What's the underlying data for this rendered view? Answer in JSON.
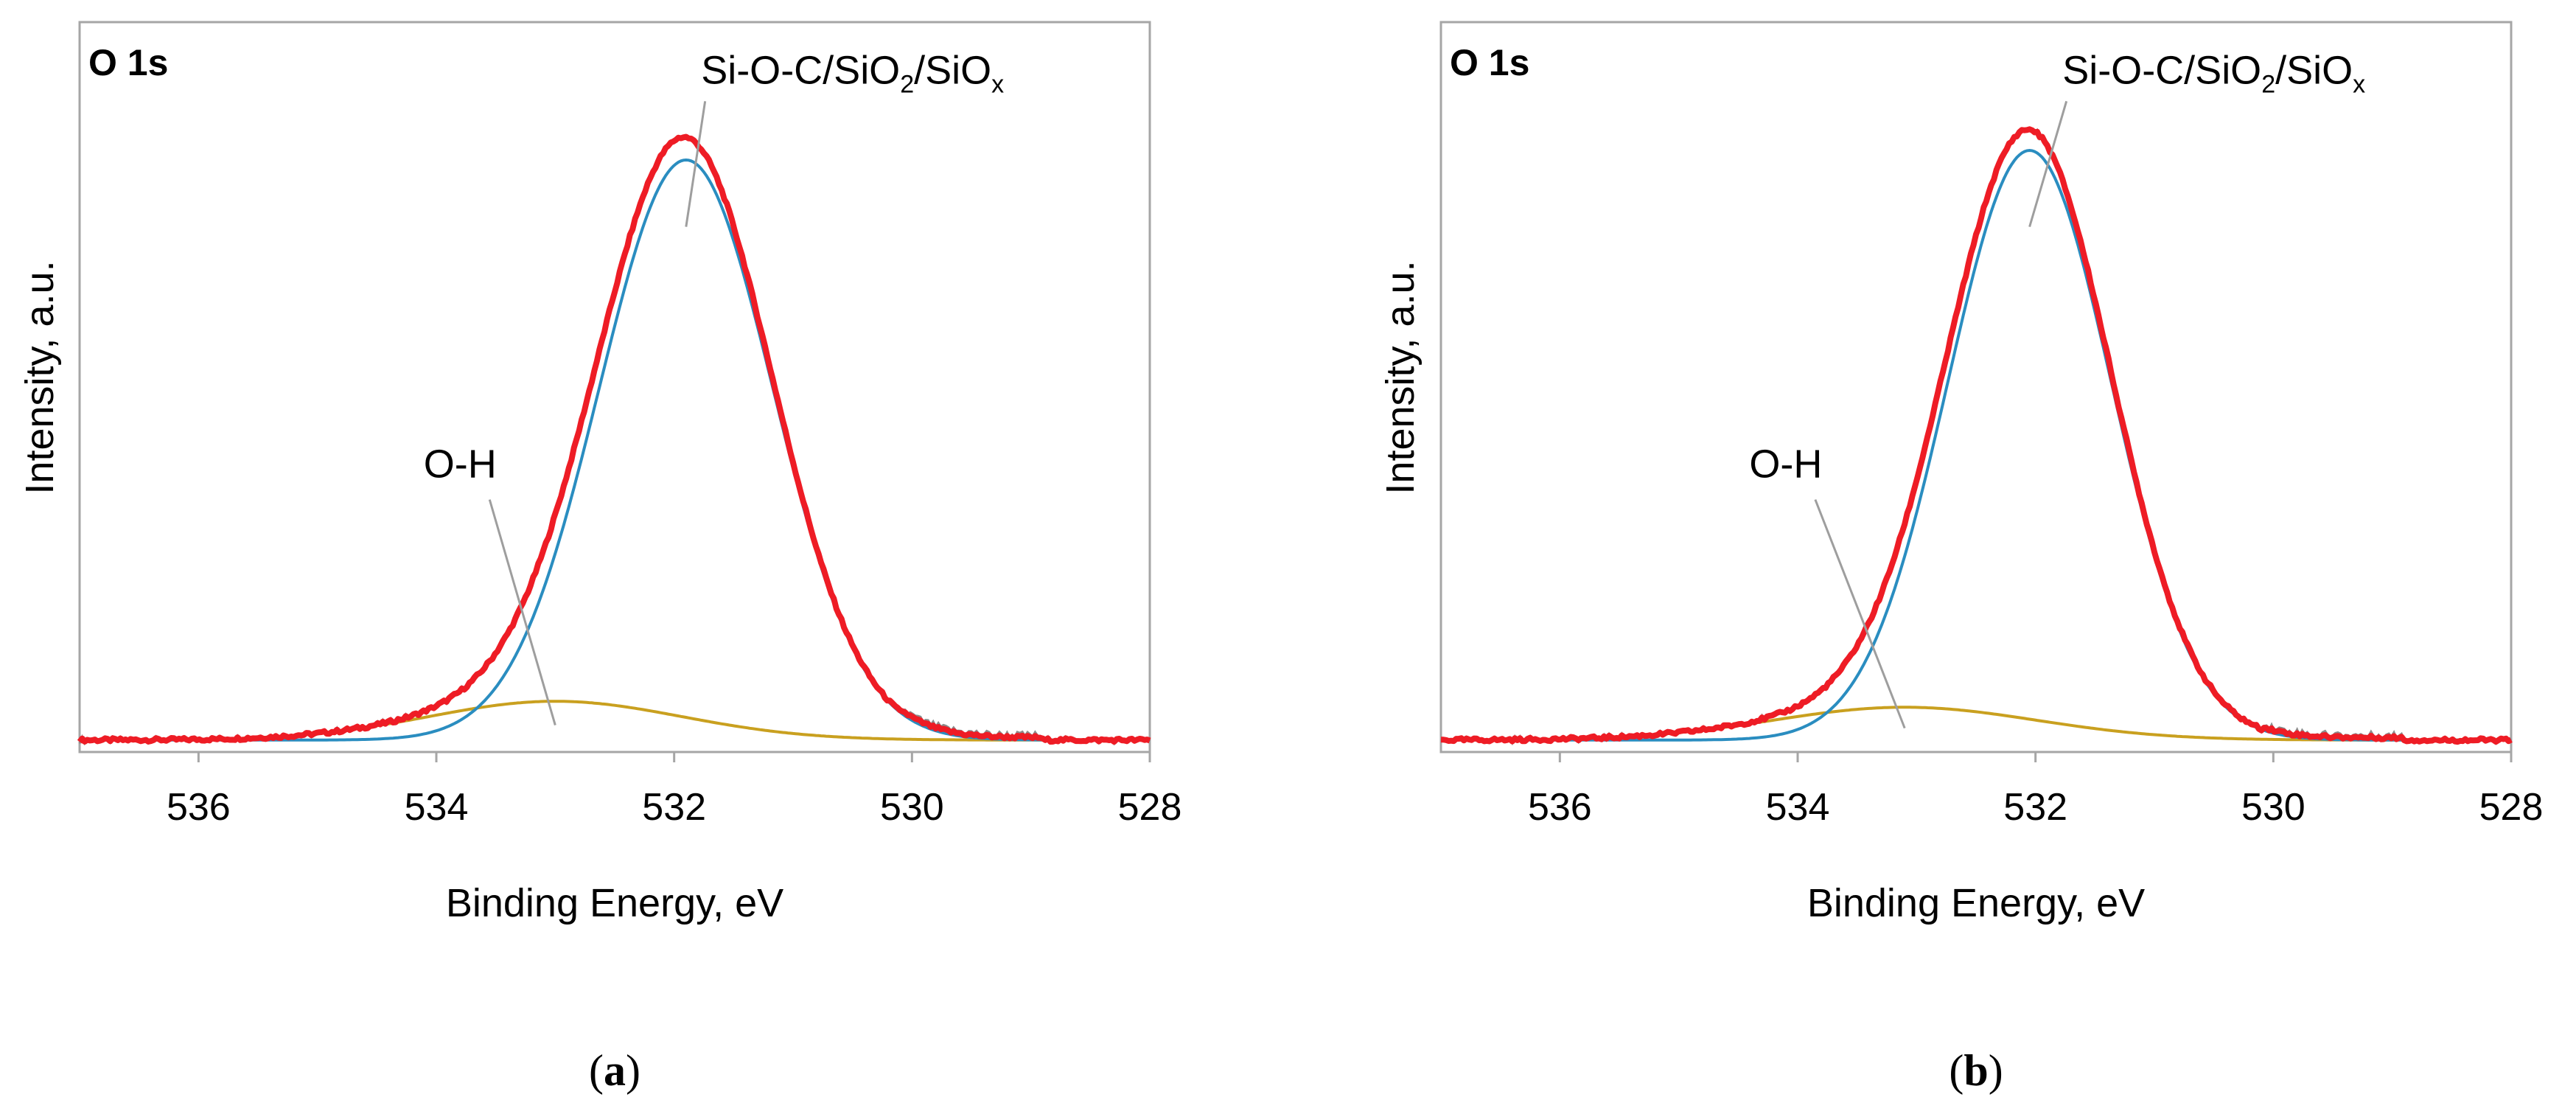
{
  "chart_data": [
    {
      "type": "line",
      "panel_id": "a",
      "caption": "(a)",
      "caption_letter": "a",
      "panel_title": "O 1s",
      "xlabel": "Binding Energy, eV",
      "ylabel": "Intensity, a.u.",
      "xlim": [
        537,
        528
      ],
      "x_reversed": true,
      "xticks": [
        536,
        534,
        532,
        530,
        528
      ],
      "ylim": [
        0,
        1.05
      ],
      "yticks_visible": false,
      "grid": false,
      "colors": {
        "envelope": "#ee1c25",
        "raw": "#8c8c8c",
        "main": "#2a8dc0",
        "oh": "#c9a01f"
      },
      "components": {
        "main": {
          "name": "Si-O-C/SiO2/SiOx",
          "center": 531.9,
          "height": 0.972,
          "fwhm": 1.72
        },
        "oh": {
          "name": "O-H",
          "center": 533.0,
          "height": 0.065,
          "fwhm": 2.5
        }
      },
      "baseline": 0.02,
      "annotations": [
        {
          "target": "main",
          "label_parts": [
            "Si-O-C/SiO",
            "2",
            "/SiO",
            "x"
          ],
          "label_x": 530.5,
          "label_y": 1.12,
          "point_x": 531.9,
          "point_y": 0.88
        },
        {
          "target": "oh",
          "label_parts": [
            "O-H"
          ],
          "label_x": 533.8,
          "label_y": 0.46,
          "point_x": 533.0,
          "point_y": 0.045
        }
      ]
    },
    {
      "type": "line",
      "panel_id": "b",
      "caption": "(b)",
      "caption_letter": "b",
      "panel_title": "O 1s",
      "xlabel": "Binding Energy, eV",
      "ylabel": "Intensity, a.u.",
      "xlim": [
        537,
        528
      ],
      "x_reversed": true,
      "xticks": [
        536,
        534,
        532,
        530,
        528
      ],
      "ylim": [
        0,
        1.05
      ],
      "yticks_visible": false,
      "grid": false,
      "colors": {
        "envelope": "#ee1c25",
        "raw": "#8c8c8c",
        "main": "#2a8dc0",
        "oh": "#c9a01f"
      },
      "components": {
        "main": {
          "name": "Si-O-C/SiO2/SiOx",
          "center": 532.05,
          "height": 0.988,
          "fwhm": 1.62
        },
        "oh": {
          "name": "O-H",
          "center": 533.1,
          "height": 0.055,
          "fwhm": 2.6
        }
      },
      "baseline": 0.02,
      "annotations": [
        {
          "target": "main",
          "label_parts": [
            "Si-O-C/SiO",
            "2",
            "/SiO",
            "x"
          ],
          "label_x": 530.5,
          "label_y": 1.12,
          "point_x": 532.05,
          "point_y": 0.88
        },
        {
          "target": "oh",
          "label_parts": [
            "O-H"
          ],
          "label_x": 534.1,
          "label_y": 0.46,
          "point_x": 533.1,
          "point_y": 0.04
        }
      ]
    }
  ]
}
